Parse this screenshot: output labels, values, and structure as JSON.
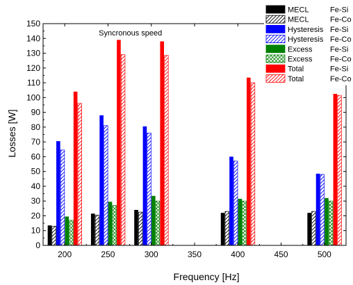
{
  "chart_data": {
    "type": "bar",
    "xlabel": "Frequency [Hz]",
    "ylabel": "Losses [W]",
    "ylim": [
      0,
      150
    ],
    "y_ticks": [
      0,
      10,
      20,
      30,
      40,
      50,
      60,
      70,
      80,
      90,
      100,
      110,
      120,
      130,
      140,
      150
    ],
    "xlim": [
      175,
      525
    ],
    "x_ticks": [
      200,
      250,
      300,
      350,
      400,
      450,
      500
    ],
    "annotation": {
      "text": "Syncronous speed",
      "x": 300,
      "y": 144
    },
    "groups": [
      200,
      250,
      300,
      400,
      500
    ],
    "series": [
      {
        "name": "MECL",
        "material": "Fe-Si",
        "color": "#000000",
        "fill": "solid",
        "values": [
          13.5,
          21.5,
          24.0,
          22.0,
          22.0
        ]
      },
      {
        "name": "MECL",
        "material": "Fe-Co",
        "color": "#000000",
        "fill": "hatch",
        "values": [
          13.0,
          20.5,
          22.5,
          23.0,
          23.0
        ]
      },
      {
        "name": "Hysteresis",
        "material": "Fe-Si",
        "color": "#0000ff",
        "fill": "solid",
        "values": [
          70.5,
          88.0,
          80.5,
          60.0,
          48.5
        ]
      },
      {
        "name": "Hysteresis",
        "material": "Fe-Co",
        "color": "#0000ff",
        "fill": "hatch",
        "values": [
          64.5,
          81.0,
          76.0,
          57.0,
          48.0
        ]
      },
      {
        "name": "Excess",
        "material": "Fe-Si",
        "color": "#008000",
        "fill": "solid",
        "values": [
          19.5,
          29.5,
          33.5,
          31.5,
          32.0
        ]
      },
      {
        "name": "Excess",
        "material": "Fe-Co",
        "color": "#008000",
        "fill": "cross",
        "values": [
          17.0,
          27.0,
          30.0,
          30.0,
          30.0
        ]
      },
      {
        "name": "Total",
        "material": "Fe-Si",
        "color": "#ff0000",
        "fill": "solid",
        "values": [
          104.0,
          139.0,
          138.0,
          113.5,
          102.5
        ]
      },
      {
        "name": "Total",
        "material": "Fe-Co",
        "color": "#ff0000",
        "fill": "hatch",
        "values": [
          96.0,
          129.0,
          128.5,
          110.0,
          101.5
        ]
      }
    ],
    "legend": {
      "position": "top-right"
    }
  }
}
